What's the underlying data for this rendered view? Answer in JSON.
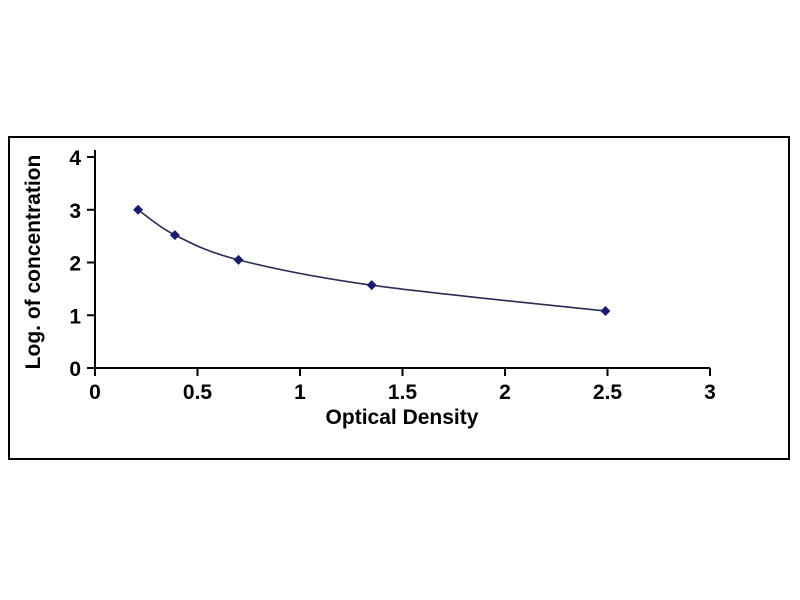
{
  "chart_data": {
    "type": "line",
    "subtype": "scatter-smooth",
    "title": "",
    "xlabel": "Optical Density",
    "ylabel": "Log. of concentration",
    "x": [
      0.21,
      0.39,
      0.7,
      1.35,
      2.49
    ],
    "y": [
      3.0,
      2.52,
      2.05,
      1.57,
      1.08
    ],
    "xlim": [
      0,
      3
    ],
    "ylim": [
      0,
      4
    ],
    "x_ticks": [
      0,
      0.5,
      1,
      1.5,
      2,
      2.5,
      3
    ],
    "y_ticks": [
      0,
      1,
      2,
      3,
      4
    ],
    "x_tick_labels": [
      "0",
      "0.5",
      "1",
      "1.5",
      "2",
      "2.5",
      "3"
    ],
    "y_tick_labels": [
      "0",
      "1",
      "2",
      "3",
      "4"
    ],
    "grid": false,
    "legend": "none",
    "marker": "diamond",
    "marker_color": "#1b1b6b",
    "line_color": "#2a2a55",
    "axis_color": "#000000",
    "background_color": "#ffffff"
  }
}
